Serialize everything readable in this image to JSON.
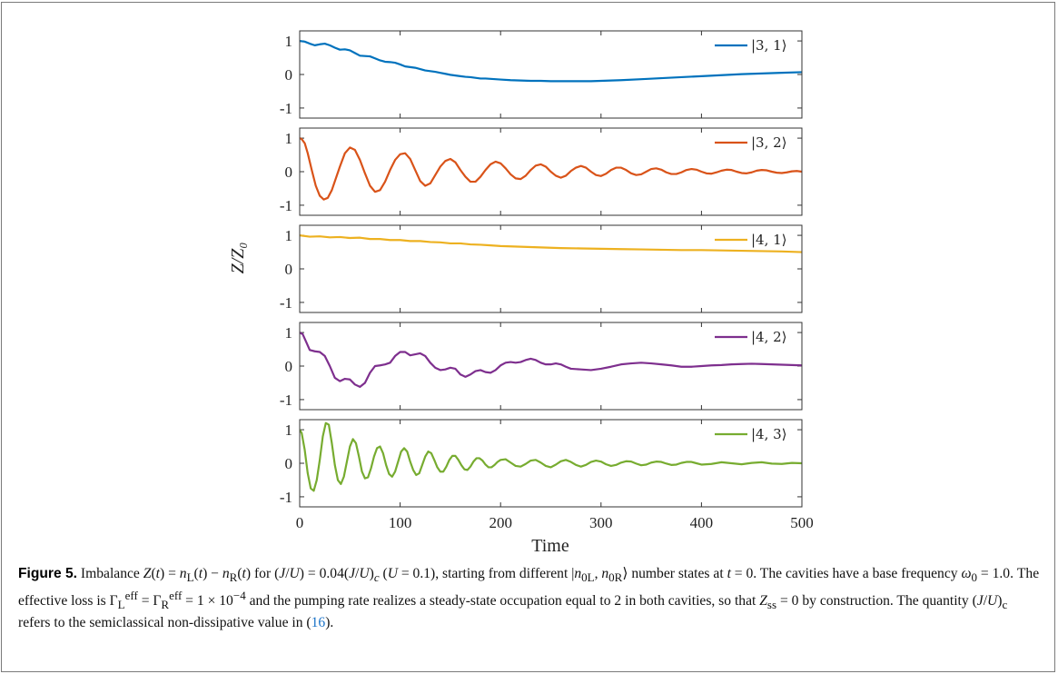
{
  "chart_data": {
    "type": "line",
    "x_label": "Time",
    "y_label": "Z/Z₀",
    "x_range": [
      0,
      500
    ],
    "x_ticks": [
      0,
      100,
      200,
      300,
      400,
      500
    ],
    "x_tick_labels": [
      "0",
      "100",
      "200",
      "300",
      "400",
      "500"
    ],
    "y_range": [
      -1.3,
      1.3
    ],
    "y_ticks": [
      -1,
      0,
      1
    ],
    "y_tick_labels": [
      "-1",
      "0",
      "1"
    ],
    "legend_position": "top-right",
    "panels": [
      {
        "legend": "|3, 1⟩",
        "color": "#0072BD",
        "series": {
          "x": [
            0,
            5,
            10,
            15,
            20,
            25,
            30,
            35,
            40,
            45,
            50,
            55,
            60,
            65,
            70,
            75,
            80,
            85,
            90,
            95,
            100,
            105,
            110,
            115,
            120,
            125,
            130,
            135,
            140,
            145,
            150,
            155,
            160,
            165,
            170,
            175,
            180,
            185,
            190,
            195,
            200,
            210,
            220,
            230,
            240,
            250,
            260,
            270,
            280,
            290,
            300,
            320,
            340,
            360,
            380,
            400,
            420,
            440,
            460,
            480,
            500
          ],
          "y": [
            1.0,
            0.98,
            0.92,
            0.87,
            0.9,
            0.92,
            0.87,
            0.8,
            0.74,
            0.75,
            0.72,
            0.64,
            0.56,
            0.55,
            0.54,
            0.48,
            0.42,
            0.38,
            0.37,
            0.35,
            0.3,
            0.24,
            0.22,
            0.2,
            0.16,
            0.12,
            0.1,
            0.08,
            0.05,
            0.02,
            -0.01,
            -0.03,
            -0.05,
            -0.07,
            -0.08,
            -0.1,
            -0.12,
            -0.12,
            -0.13,
            -0.14,
            -0.15,
            -0.17,
            -0.18,
            -0.19,
            -0.19,
            -0.2,
            -0.2,
            -0.2,
            -0.2,
            -0.2,
            -0.19,
            -0.17,
            -0.14,
            -0.11,
            -0.08,
            -0.05,
            -0.02,
            0.01,
            0.03,
            0.05,
            0.07
          ]
        }
      },
      {
        "legend": "|3, 2⟩",
        "color": "#D95319",
        "series": {
          "x": [
            0,
            2,
            5,
            8,
            12,
            16,
            20,
            24,
            28,
            32,
            36,
            40,
            45,
            50,
            55,
            60,
            65,
            70,
            75,
            80,
            85,
            90,
            95,
            100,
            105,
            110,
            115,
            120,
            125,
            130,
            135,
            140,
            145,
            150,
            155,
            160,
            165,
            170,
            175,
            180,
            185,
            190,
            195,
            200,
            205,
            210,
            215,
            220,
            225,
            230,
            235,
            240,
            245,
            250,
            255,
            260,
            265,
            270,
            275,
            280,
            285,
            290,
            295,
            300,
            305,
            310,
            315,
            320,
            325,
            330,
            335,
            340,
            345,
            350,
            355,
            360,
            365,
            370,
            375,
            380,
            385,
            390,
            395,
            400,
            405,
            410,
            415,
            420,
            425,
            430,
            435,
            440,
            445,
            450,
            455,
            460,
            465,
            470,
            475,
            480,
            485,
            490,
            495,
            500
          ],
          "y": [
            1.0,
            0.97,
            0.85,
            0.55,
            0.05,
            -0.42,
            -0.72,
            -0.83,
            -0.78,
            -0.55,
            -0.2,
            0.15,
            0.55,
            0.72,
            0.65,
            0.35,
            -0.05,
            -0.42,
            -0.6,
            -0.55,
            -0.3,
            0.05,
            0.35,
            0.52,
            0.55,
            0.38,
            0.05,
            -0.28,
            -0.42,
            -0.35,
            -0.1,
            0.15,
            0.32,
            0.38,
            0.28,
            0.05,
            -0.15,
            -0.3,
            -0.3,
            -0.15,
            0.05,
            0.22,
            0.3,
            0.25,
            0.1,
            -0.08,
            -0.2,
            -0.22,
            -0.12,
            0.05,
            0.18,
            0.22,
            0.15,
            0.0,
            -0.12,
            -0.18,
            -0.12,
            0.02,
            0.12,
            0.17,
            0.12,
            0.0,
            -0.1,
            -0.13,
            -0.06,
            0.05,
            0.12,
            0.12,
            0.05,
            -0.05,
            -0.1,
            -0.08,
            0.0,
            0.08,
            0.1,
            0.06,
            -0.02,
            -0.07,
            -0.07,
            -0.02,
            0.05,
            0.08,
            0.06,
            0.0,
            -0.05,
            -0.06,
            -0.02,
            0.03,
            0.06,
            0.05,
            0.0,
            -0.04,
            -0.05,
            -0.02,
            0.03,
            0.05,
            0.04,
            0.0,
            -0.03,
            -0.04,
            -0.02,
            0.01,
            0.02,
            0.0
          ]
        }
      },
      {
        "legend": "|4, 1⟩",
        "color": "#EDB120",
        "series": {
          "x": [
            0,
            10,
            20,
            30,
            40,
            50,
            60,
            70,
            80,
            90,
            100,
            110,
            120,
            130,
            140,
            150,
            160,
            170,
            180,
            190,
            200,
            220,
            240,
            260,
            280,
            300,
            320,
            340,
            360,
            380,
            400,
            420,
            440,
            460,
            480,
            500
          ],
          "y": [
            1.0,
            0.96,
            0.97,
            0.94,
            0.95,
            0.92,
            0.93,
            0.89,
            0.89,
            0.86,
            0.86,
            0.83,
            0.83,
            0.8,
            0.79,
            0.76,
            0.76,
            0.73,
            0.72,
            0.7,
            0.68,
            0.66,
            0.64,
            0.62,
            0.61,
            0.6,
            0.59,
            0.58,
            0.57,
            0.56,
            0.56,
            0.55,
            0.54,
            0.53,
            0.52,
            0.5
          ]
        }
      },
      {
        "legend": "|4, 2⟩",
        "color": "#7E2F8E",
        "series": {
          "x": [
            0,
            3,
            6,
            10,
            15,
            20,
            25,
            30,
            35,
            40,
            45,
            50,
            55,
            60,
            65,
            70,
            75,
            80,
            85,
            90,
            95,
            100,
            105,
            110,
            115,
            120,
            125,
            130,
            135,
            140,
            145,
            150,
            155,
            160,
            165,
            170,
            175,
            180,
            185,
            190,
            195,
            200,
            205,
            210,
            215,
            220,
            225,
            230,
            235,
            240,
            245,
            250,
            255,
            260,
            265,
            270,
            280,
            290,
            300,
            310,
            320,
            330,
            340,
            350,
            360,
            370,
            380,
            390,
            400,
            410,
            420,
            430,
            440,
            450,
            460,
            470,
            480,
            490,
            500
          ],
          "y": [
            1.0,
            0.95,
            0.75,
            0.48,
            0.44,
            0.42,
            0.3,
            0.0,
            -0.35,
            -0.45,
            -0.38,
            -0.4,
            -0.55,
            -0.62,
            -0.5,
            -0.2,
            0.0,
            0.02,
            0.05,
            0.1,
            0.3,
            0.42,
            0.42,
            0.32,
            0.35,
            0.38,
            0.3,
            0.1,
            -0.05,
            -0.12,
            -0.1,
            -0.05,
            -0.08,
            -0.25,
            -0.32,
            -0.25,
            -0.15,
            -0.12,
            -0.18,
            -0.2,
            -0.12,
            0.02,
            0.1,
            0.12,
            0.1,
            0.12,
            0.18,
            0.22,
            0.18,
            0.1,
            0.05,
            0.05,
            0.08,
            0.05,
            -0.02,
            -0.08,
            -0.1,
            -0.12,
            -0.08,
            -0.02,
            0.05,
            0.08,
            0.1,
            0.08,
            0.05,
            0.02,
            -0.02,
            -0.02,
            0.0,
            0.02,
            0.03,
            0.05,
            0.06,
            0.07,
            0.06,
            0.05,
            0.04,
            0.03,
            0.02
          ]
        }
      },
      {
        "legend": "|4, 3⟩",
        "color": "#77AC30",
        "series": {
          "x": [
            0,
            2,
            5,
            8,
            11,
            14,
            17,
            20,
            23,
            26,
            29,
            32,
            35,
            38,
            41,
            44,
            47,
            50,
            53,
            56,
            59,
            62,
            65,
            68,
            71,
            74,
            77,
            80,
            83,
            86,
            89,
            92,
            95,
            98,
            101,
            104,
            107,
            110,
            113,
            116,
            119,
            122,
            125,
            128,
            131,
            134,
            137,
            140,
            143,
            146,
            149,
            152,
            155,
            158,
            161,
            164,
            167,
            170,
            173,
            176,
            179,
            182,
            185,
            188,
            191,
            194,
            197,
            200,
            205,
            210,
            215,
            220,
            225,
            230,
            235,
            240,
            245,
            250,
            255,
            260,
            265,
            270,
            275,
            280,
            285,
            290,
            295,
            300,
            305,
            310,
            315,
            320,
            325,
            330,
            335,
            340,
            345,
            350,
            355,
            360,
            365,
            370,
            375,
            380,
            385,
            390,
            395,
            400,
            410,
            420,
            430,
            440,
            450,
            460,
            470,
            480,
            490,
            500
          ],
          "y": [
            1.0,
            0.9,
            0.4,
            -0.3,
            -0.75,
            -0.82,
            -0.5,
            0.1,
            0.8,
            1.2,
            1.15,
            0.6,
            -0.05,
            -0.5,
            -0.62,
            -0.4,
            0.05,
            0.5,
            0.72,
            0.6,
            0.2,
            -0.25,
            -0.45,
            -0.42,
            -0.15,
            0.2,
            0.45,
            0.5,
            0.3,
            -0.05,
            -0.32,
            -0.4,
            -0.25,
            0.05,
            0.35,
            0.45,
            0.35,
            0.05,
            -0.2,
            -0.35,
            -0.3,
            -0.05,
            0.2,
            0.35,
            0.3,
            0.1,
            -0.12,
            -0.25,
            -0.25,
            -0.1,
            0.1,
            0.22,
            0.22,
            0.1,
            -0.06,
            -0.18,
            -0.2,
            -0.1,
            0.05,
            0.15,
            0.15,
            0.08,
            -0.04,
            -0.12,
            -0.12,
            -0.05,
            0.04,
            0.1,
            0.12,
            0.02,
            -0.08,
            -0.1,
            -0.02,
            0.08,
            0.1,
            0.02,
            -0.08,
            -0.12,
            -0.04,
            0.06,
            0.1,
            0.04,
            -0.05,
            -0.1,
            -0.05,
            0.04,
            0.08,
            0.05,
            -0.03,
            -0.08,
            -0.05,
            0.02,
            0.06,
            0.05,
            -0.01,
            -0.06,
            -0.04,
            0.02,
            0.05,
            0.04,
            -0.01,
            -0.05,
            -0.04,
            0.01,
            0.04,
            0.04,
            0.0,
            -0.04,
            -0.02,
            0.03,
            0.0,
            -0.03,
            0.01,
            0.03,
            -0.01,
            -0.02,
            0.01,
            0.0
          ]
        }
      }
    ]
  },
  "caption": {
    "label": "Figure 5.",
    "text_html": "Imbalance <i>Z</i>(<i>t</i>) = <i>n</i><sub>L</sub>(<i>t</i>) &minus; <i>n</i><sub>R</sub>(<i>t</i>) for (<i>J</i>/<i>U</i>) = 0.04(<i>J</i>/<i>U</i>)<sub><i>c</i></sub> (<i>U</i> = 0.1), starting from different |<i>n</i><sub>0L</sub>, <i>n</i><sub>0R</sub>&rang; number states at <i>t</i> = 0. The cavities have a base frequency <i>&omega;</i><sub>0</sub> = 1.0. The effective loss is &Gamma;<sub>L</sub><sup>eff</sup> = &Gamma;<sub>R</sub><sup>eff</sup> = 1 &times; 10<sup>&minus;4</sup> and the pumping rate realizes a steady-state occupation equal to 2 in both cavities, so that <i>Z</i><sub>ss</sub> = 0 by construction. The quantity (<i>J</i>/<i>U</i>)<sub>c</sub> refers to the semiclassical non-dissipative value in (<span class=\"ref-link\">16</span>).",
    "link_color": "#1a73c8"
  }
}
